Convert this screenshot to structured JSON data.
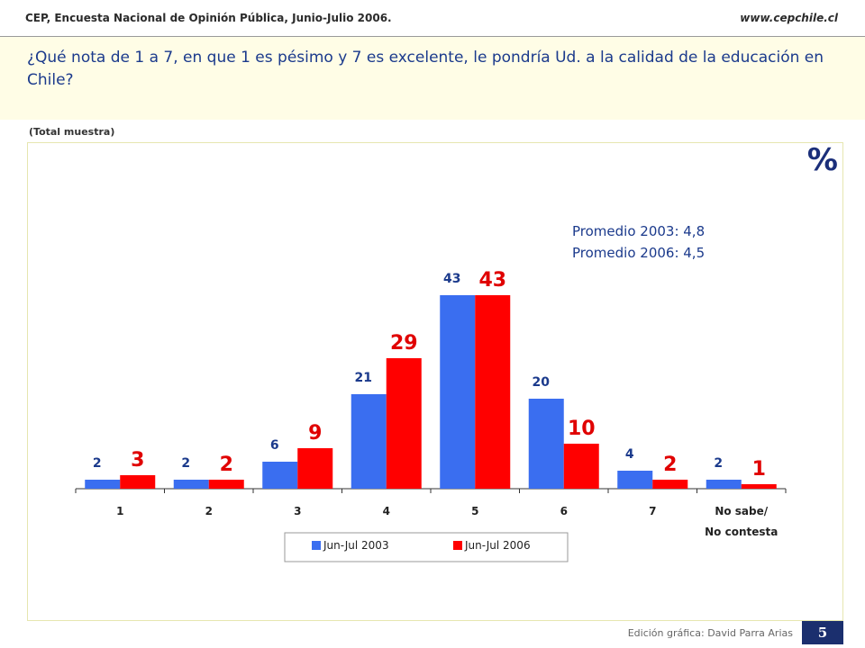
{
  "header": {
    "source": "CEP, Encuesta Nacional de Opinión Pública, Junio-Julio 2006.",
    "website": "www.cepchile.cl"
  },
  "question": "¿Qué nota de 1 a 7, en que 1 es pésimo y 7 es excelente, le pondría Ud. a la calidad de la educación en Chile?",
  "sample_note": "(Total muestra)",
  "unit_symbol": "%",
  "averages": [
    "Promedio 2003: 4,8",
    "Promedio 2006: 4,5"
  ],
  "footer": {
    "credit_label": "Edición gráfica:",
    "credit_name": "David Parra Arias",
    "page_number": "5"
  },
  "chart_data": {
    "type": "bar",
    "categories": [
      "1",
      "2",
      "3",
      "4",
      "5",
      "6",
      "7",
      "No sabe/ No contesta"
    ],
    "series": [
      {
        "name": "Jun-Jul 2003",
        "values": [
          2,
          2,
          6,
          21,
          43,
          20,
          4,
          2
        ],
        "color": "#3a6ef0"
      },
      {
        "name": "Jun-Jul 2006",
        "values": [
          3,
          2,
          9,
          29,
          43,
          10,
          2,
          1
        ],
        "color": "#ff0000"
      }
    ],
    "ylim": [
      0,
      45
    ],
    "grid": false,
    "legend_position": "bottom",
    "label_colors": {
      "Jun-Jul 2003": "#1b3a8c",
      "Jun-Jul 2006": "#e00000"
    }
  }
}
